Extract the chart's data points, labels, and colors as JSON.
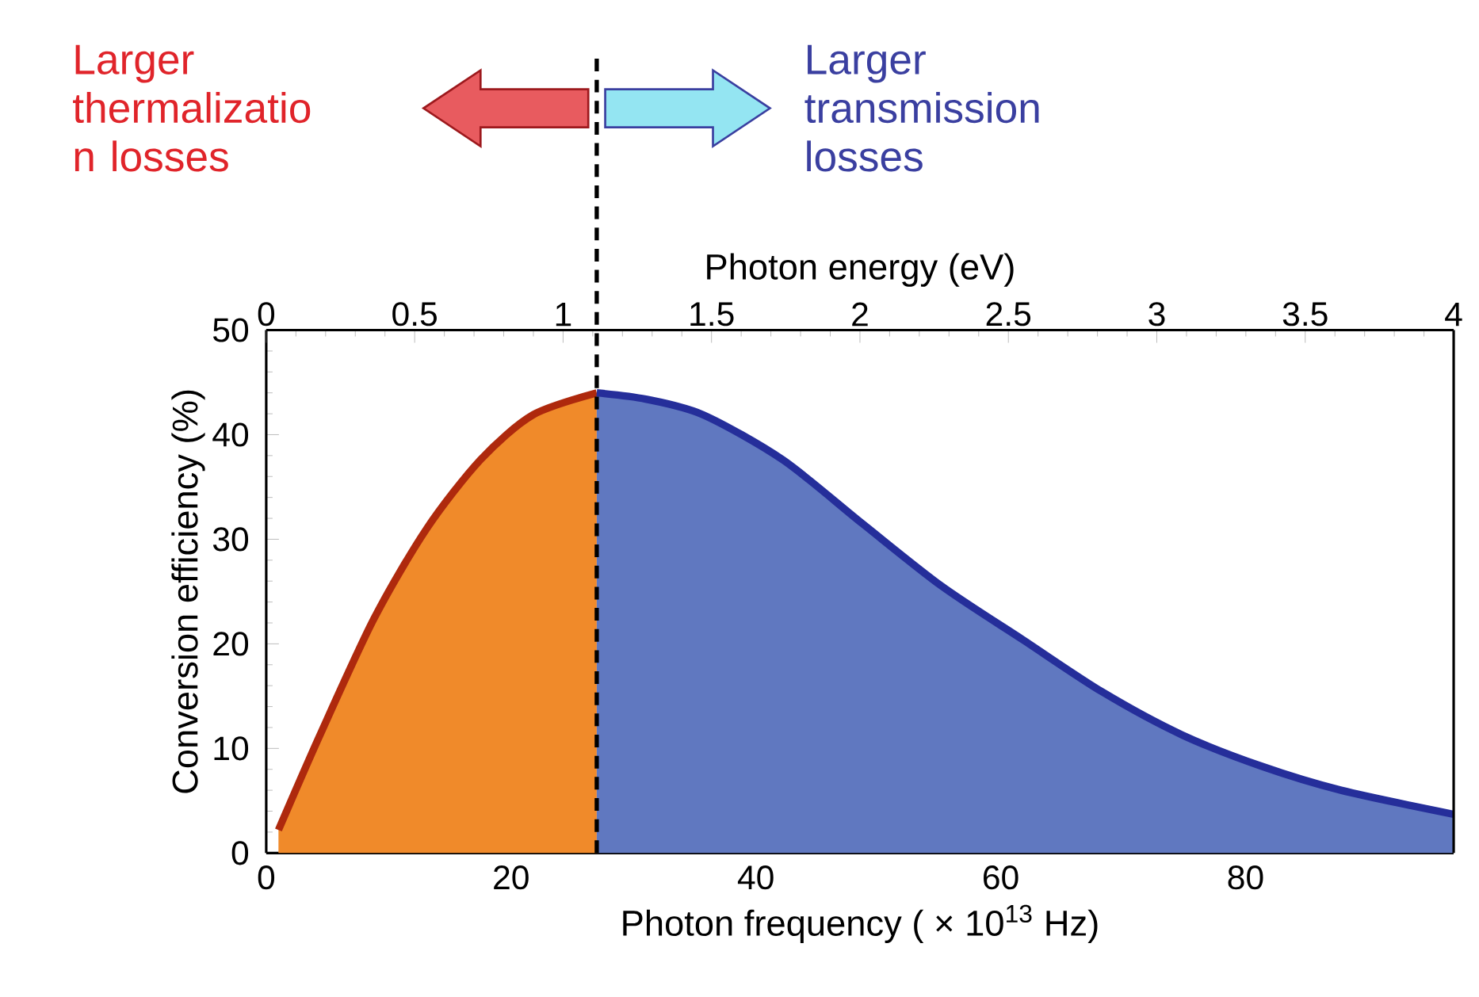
{
  "chart_data": {
    "type": "area",
    "xlabel": "Photon frequency ( × 10$^{13}$ Hz)",
    "x2label": "Photon energy (eV)",
    "ylabel": "Conversion efficiency (%)",
    "xlim": [
      0,
      97
    ],
    "xticks": [
      0,
      20,
      40,
      60,
      80
    ],
    "x2lim": [
      0,
      4
    ],
    "x2ticks": [
      0,
      0.5,
      1,
      1.5,
      2,
      2.5,
      3,
      3.5,
      4
    ],
    "ylim": [
      0,
      50
    ],
    "yticks": [
      0,
      10,
      20,
      30,
      40,
      50
    ],
    "series": [
      {
        "color": "#f08a2a",
        "x": [
          1,
          4.4,
          8.8,
          13.1,
          17.5,
          21.8,
          27
        ],
        "values": [
          2.2,
          11.3,
          22.4,
          31,
          37.6,
          41.9,
          44
        ]
      },
      {
        "color": "#6078c0",
        "x": [
          27,
          31,
          35.7,
          42.2,
          48.7,
          55.2,
          61.8,
          68.3,
          74.8,
          81.3,
          87.8,
          97
        ],
        "values": [
          44,
          43.4,
          41.9,
          37.6,
          31.5,
          25.5,
          20.4,
          15.4,
          11.3,
          8.3,
          6,
          3.7
        ]
      }
    ],
    "ref_lines": [
      {
        "axis": "x",
        "value": 27,
        "color": "#000000",
        "line_style": "dashed"
      }
    ],
    "annotations": [
      "Larger thermalizatio n losses",
      "Larger transmission losses"
    ],
    "grid": false
  }
}
